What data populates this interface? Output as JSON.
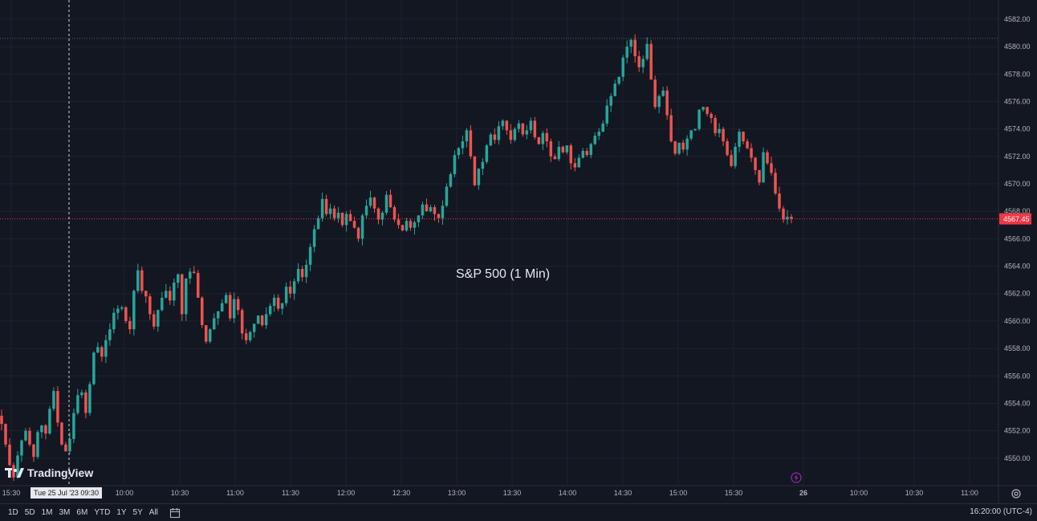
{
  "chart_title": "S&P 500 (1 Min)",
  "brand": "TradingView",
  "crosshair_time": "Tue 25 Jul '23  09:30",
  "clock": "16:20:00 (UTC-4)",
  "ranges": [
    "1D",
    "5D",
    "1M",
    "3M",
    "6M",
    "YTD",
    "1Y",
    "5Y",
    "All"
  ],
  "colors": {
    "background": "#131722",
    "up": "#26a69a",
    "down": "#ef5350",
    "grid": "#1e222d",
    "last_price": "#f23645"
  },
  "chart_data": {
    "type": "candlestick",
    "title": "S&P 500 (1 Min)",
    "y_ticks": [
      "4550.00",
      "4552.00",
      "4554.00",
      "4556.00",
      "4558.00",
      "4560.00",
      "4562.00",
      "4564.00",
      "4566.00",
      "4568.00",
      "4570.00",
      "4572.00",
      "4574.00",
      "4576.00",
      "4578.00",
      "4580.00",
      "4582.00"
    ],
    "ylim": [
      4548.0,
      4583.4
    ],
    "x_ticks": [
      "15:30",
      "10:00",
      "10:30",
      "11:00",
      "11:30",
      "12:00",
      "12:30",
      "13:00",
      "13:30",
      "14:00",
      "14:30",
      "15:00",
      "15:30",
      "26",
      "10:00",
      "10:30",
      "11:00"
    ],
    "last_price": "4567.45",
    "last_price_value": 4567.45,
    "session_high": 4580.6,
    "closes": [
      4552.5,
      4551.0,
      4549.5,
      4548.6,
      4550.2,
      4551.3,
      4552.0,
      4551.0,
      4550.1,
      4551.9,
      4552.4,
      4551.8,
      4553.6,
      4554.9,
      4552.6,
      4551.0,
      4550.5,
      4551.4,
      4553.3,
      4554.6,
      4554.8,
      4553.3,
      4555.4,
      4557.7,
      4558.1,
      4557.4,
      4558.6,
      4559.4,
      4560.6,
      4560.9,
      4561.0,
      4560.0,
      4559.4,
      4562.2,
      4563.7,
      4562.2,
      4561.8,
      4560.5,
      4559.6,
      4560.8,
      4561.7,
      4562.2,
      4561.5,
      4562.8,
      4563.4,
      4560.5,
      4563.1,
      4563.6,
      4563.5,
      4561.7,
      4559.7,
      4558.5,
      4559.4,
      4560.2,
      4560.7,
      4561.3,
      4561.9,
      4560.2,
      4561.6,
      4560.8,
      4559.1,
      4558.6,
      4559.2,
      4559.8,
      4560.4,
      4559.7,
      4560.5,
      4561.1,
      4561.7,
      4560.9,
      4561.3,
      4562.5,
      4562.0,
      4562.9,
      4563.8,
      4563.2,
      4564.1,
      4565.4,
      4566.7,
      4567.5,
      4568.9,
      4567.8,
      4568.2,
      4567.5,
      4567.9,
      4567.0,
      4567.8,
      4567.3,
      4566.8,
      4566.0,
      4567.7,
      4568.4,
      4569.0,
      4568.2,
      4567.4,
      4567.9,
      4569.2,
      4568.3,
      4567.4,
      4567.0,
      4566.6,
      4567.3,
      4566.8,
      4567.2,
      4567.7,
      4568.5,
      4568.0,
      4568.3,
      4567.8,
      4567.5,
      4568.4,
      4569.8,
      4570.7,
      4572.1,
      4572.6,
      4573.1,
      4573.9,
      4572.0,
      4569.9,
      4571.1,
      4571.6,
      4572.8,
      4573.6,
      4573.2,
      4574.2,
      4574.6,
      4573.9,
      4573.2,
      4574.0,
      4574.4,
      4573.6,
      4573.9,
      4574.6,
      4573.4,
      4572.9,
      4573.7,
      4573.1,
      4572.0,
      4571.8,
      4572.7,
      4572.3,
      4572.8,
      4571.5,
      4571.2,
      4571.9,
      4572.4,
      4572.1,
      4572.9,
      4573.5,
      4573.8,
      4574.4,
      4575.7,
      4576.4,
      4577.3,
      4577.8,
      4579.2,
      4580.0,
      4580.5,
      4579.3,
      4578.5,
      4579.1,
      4580.2,
      4577.6,
      4575.6,
      4576.4,
      4576.8,
      4575.0,
      4573.1,
      4572.2,
      4573.0,
      4572.5,
      4573.3,
      4573.9,
      4574.0,
      4575.4,
      4575.6,
      4575.1,
      4574.8,
      4573.7,
      4574.0,
      4573.1,
      4572.1,
      4571.3,
      4572.7,
      4573.8,
      4573.1,
      4572.6,
      4571.9,
      4571.0,
      4570.1,
      4572.3,
      4571.5,
      4570.8,
      4569.3,
      4568.2,
      4567.4,
      4567.6,
      4567.45
    ]
  }
}
